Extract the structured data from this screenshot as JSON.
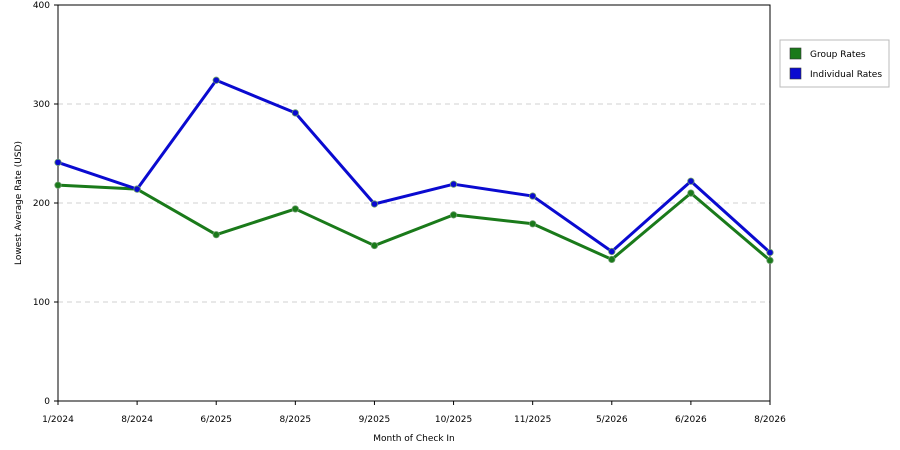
{
  "chart_data": {
    "type": "line",
    "title": "",
    "xlabel": "Month of Check In",
    "ylabel": "Lowest Average Rate (USD)",
    "categories": [
      "1/2024",
      "8/2024",
      "6/2025",
      "8/2025",
      "9/2025",
      "10/2025",
      "11/2025",
      "5/2026",
      "6/2026",
      "8/2026"
    ],
    "ylim": [
      0,
      400
    ],
    "yticks": [
      0,
      100,
      200,
      300,
      400
    ],
    "grid": "horizontal dashed",
    "legend_position": "right",
    "series": [
      {
        "name": "Group Rates",
        "color": "#1a7a1a",
        "values": [
          218,
          214,
          168,
          194,
          157,
          188,
          179,
          143,
          210,
          142
        ]
      },
      {
        "name": "Individual Rates",
        "color": "#0a0ad0",
        "values": [
          241,
          214,
          324,
          291,
          199,
          219,
          207,
          151,
          222,
          150
        ]
      }
    ]
  }
}
